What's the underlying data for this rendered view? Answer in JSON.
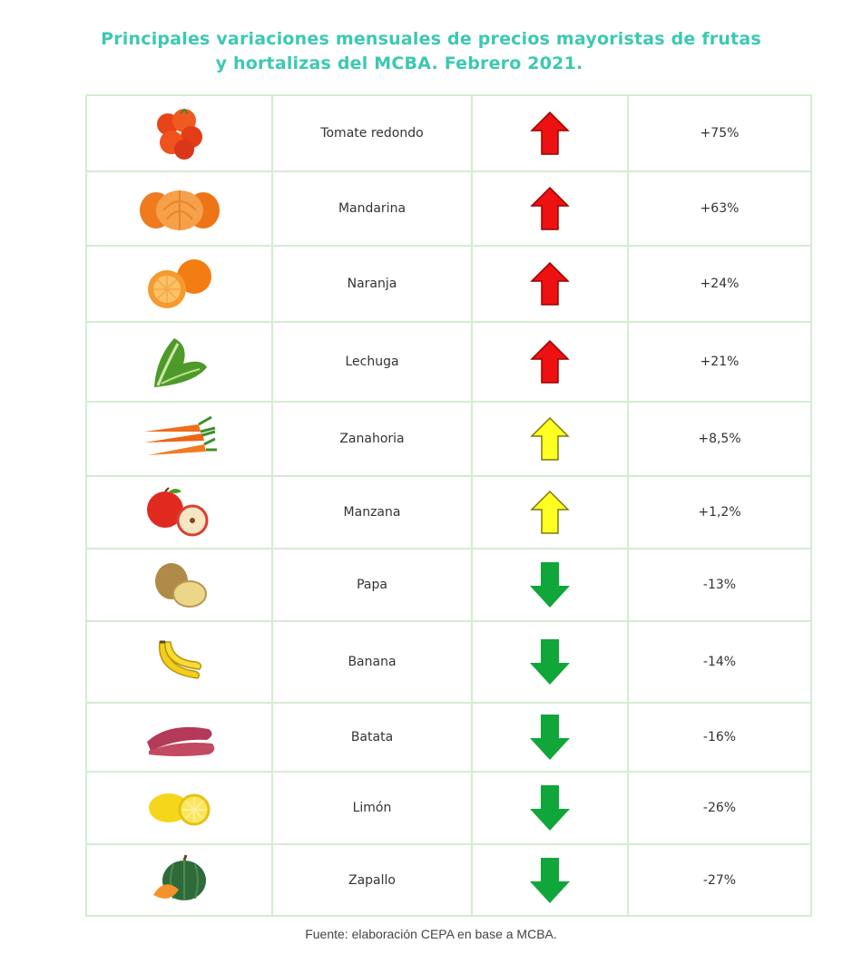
{
  "title": {
    "line1": "Principales variaciones mensuales de precios mayoristas de frutas",
    "line2": "y hortalizas del MCBA. Febrero 2021."
  },
  "colors": {
    "title": "#3cc9b0",
    "grid": "#d4ecd2",
    "arrow_up_red": "#ee1111",
    "arrow_up_yellow": "#ffff22",
    "arrow_down_green": "#11a63a"
  },
  "rows": [
    {
      "icon": "tomato-icon",
      "name": "Tomate redondo",
      "arrow": "up-red-icon",
      "change": "+75%"
    },
    {
      "icon": "mandarin-icon",
      "name": "Mandarina",
      "arrow": "up-red-icon",
      "change": "+63%"
    },
    {
      "icon": "orange-icon",
      "name": "Naranja",
      "arrow": "up-red-icon",
      "change": "+24%"
    },
    {
      "icon": "lettuce-icon",
      "name": "Lechuga",
      "arrow": "up-red-icon",
      "change": "+21%"
    },
    {
      "icon": "carrot-icon",
      "name": "Zanahoria",
      "arrow": "up-yellow-icon",
      "change": "+8,5%"
    },
    {
      "icon": "apple-icon",
      "name": "Manzana",
      "arrow": "up-yellow-icon",
      "change": "+1,2%"
    },
    {
      "icon": "potato-icon",
      "name": "Papa",
      "arrow": "down-green-icon",
      "change": "-13%"
    },
    {
      "icon": "banana-icon",
      "name": "Banana",
      "arrow": "down-green-icon",
      "change": "-14%"
    },
    {
      "icon": "sweet-potato-icon",
      "name": "Batata",
      "arrow": "down-green-icon",
      "change": "-16%"
    },
    {
      "icon": "lemon-icon",
      "name": "Limón",
      "arrow": "down-green-icon",
      "change": "-26%"
    },
    {
      "icon": "pumpkin-icon",
      "name": "Zapallo",
      "arrow": "down-green-icon",
      "change": "-27%"
    }
  ],
  "source": "Fuente: elaboración CEPA en base a MCBA."
}
